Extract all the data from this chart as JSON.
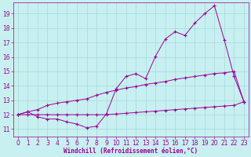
{
  "title": "",
  "xlabel": "Windchill (Refroidissement éolien,°C)",
  "ylabel": "",
  "background_color": "#c8f0f0",
  "line_color": "#990099",
  "grid_color": "#aadddd",
  "xlim": [
    -0.5,
    23.5
  ],
  "ylim": [
    10.5,
    19.8
  ],
  "xticks": [
    0,
    1,
    2,
    3,
    4,
    5,
    6,
    7,
    8,
    9,
    10,
    11,
    12,
    13,
    14,
    15,
    16,
    17,
    18,
    19,
    20,
    21,
    22,
    23
  ],
  "yticks": [
    11,
    12,
    13,
    14,
    15,
    16,
    17,
    18,
    19
  ],
  "line1_x": [
    0,
    1,
    2,
    3,
    4,
    5,
    6,
    7,
    8,
    9,
    10,
    11,
    12,
    13,
    14,
    15,
    16,
    17,
    18,
    19,
    20,
    21,
    22,
    23
  ],
  "line1_y": [
    12.0,
    12.2,
    11.85,
    11.7,
    11.7,
    11.5,
    11.35,
    11.1,
    11.2,
    12.05,
    13.8,
    14.65,
    14.85,
    14.5,
    16.05,
    17.25,
    17.75,
    17.5,
    18.35,
    19.0,
    19.55,
    17.2,
    14.65,
    12.9
  ],
  "line2_x": [
    0,
    1,
    2,
    3,
    4,
    5,
    6,
    7,
    8,
    9,
    10,
    11,
    12,
    13,
    14,
    15,
    16,
    17,
    18,
    19,
    20,
    21,
    22,
    23
  ],
  "line2_y": [
    12.0,
    12.2,
    12.35,
    12.65,
    12.8,
    12.9,
    13.0,
    13.1,
    13.35,
    13.55,
    13.7,
    13.85,
    13.95,
    14.1,
    14.2,
    14.3,
    14.45,
    14.55,
    14.65,
    14.75,
    14.85,
    14.9,
    15.0,
    12.9
  ],
  "line3_x": [
    0,
    1,
    2,
    3,
    4,
    5,
    6,
    7,
    8,
    9,
    10,
    11,
    12,
    13,
    14,
    15,
    16,
    17,
    18,
    19,
    20,
    21,
    22,
    23
  ],
  "line3_y": [
    12.0,
    12.0,
    12.0,
    12.0,
    12.0,
    12.0,
    12.0,
    12.0,
    12.0,
    12.0,
    12.05,
    12.1,
    12.15,
    12.2,
    12.25,
    12.3,
    12.35,
    12.4,
    12.45,
    12.5,
    12.55,
    12.6,
    12.65,
    12.9
  ]
}
